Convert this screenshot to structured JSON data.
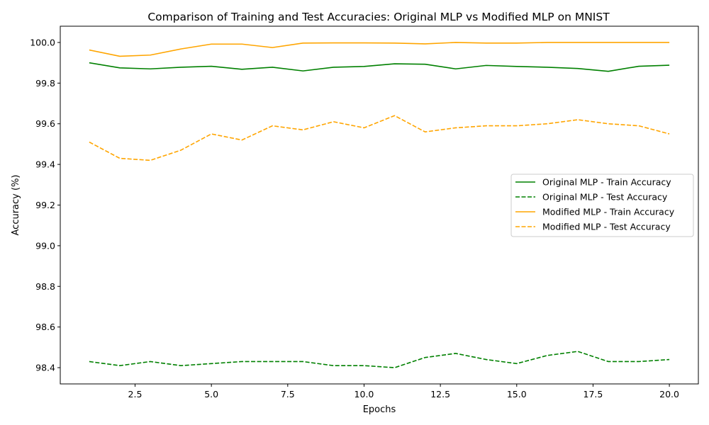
{
  "chart_data": {
    "type": "line",
    "title": "Comparison of Training and Test Accuracies: Original MLP vs Modified MLP on MNIST",
    "xlabel": "Epochs",
    "ylabel": "Accuracy (%)",
    "xlim": [
      0.05,
      20.95
    ],
    "ylim": [
      98.32,
      100.08
    ],
    "xticks": [
      2.5,
      5.0,
      7.5,
      10.0,
      12.5,
      15.0,
      17.5,
      20.0
    ],
    "xtick_labels": [
      "2.5",
      "5.0",
      "7.5",
      "10.0",
      "12.5",
      "15.0",
      "17.5",
      "20.0"
    ],
    "yticks": [
      98.4,
      98.6,
      98.8,
      99.0,
      99.2,
      99.4,
      99.6,
      99.8,
      100.0
    ],
    "ytick_labels": [
      "98.4",
      "98.6",
      "98.8",
      "99.0",
      "99.2",
      "99.4",
      "99.6",
      "99.8",
      "100.0"
    ],
    "grid": false,
    "legend_position": "center-right",
    "x": [
      1,
      2,
      3,
      4,
      5,
      6,
      7,
      8,
      9,
      10,
      11,
      12,
      13,
      14,
      15,
      16,
      17,
      18,
      19,
      20
    ],
    "series": [
      {
        "name": "Original MLP - Train Accuracy",
        "color": "#008000",
        "dash": "solid",
        "values": [
          99.9,
          99.875,
          99.87,
          99.878,
          99.883,
          99.868,
          99.878,
          99.86,
          99.878,
          99.882,
          99.895,
          99.893,
          99.87,
          99.887,
          99.882,
          99.878,
          99.872,
          99.858,
          99.883,
          99.888
        ]
      },
      {
        "name": "Original MLP - Test Accuracy",
        "color": "#008000",
        "dash": "dashed",
        "values": [
          98.43,
          98.41,
          98.43,
          98.41,
          98.42,
          98.43,
          98.43,
          98.43,
          98.41,
          98.41,
          98.4,
          98.45,
          98.47,
          98.44,
          98.42,
          98.46,
          98.48,
          98.43,
          98.43,
          98.44
        ]
      },
      {
        "name": "Modified MLP - Train Accuracy",
        "color": "#FFA500",
        "dash": "solid",
        "values": [
          99.963,
          99.932,
          99.938,
          99.968,
          99.992,
          99.992,
          99.975,
          99.997,
          99.998,
          99.998,
          99.997,
          99.993,
          100.0,
          99.997,
          99.997,
          100.0,
          100.0,
          100.0,
          100.0,
          100.0
        ]
      },
      {
        "name": "Modified MLP - Test Accuracy",
        "color": "#FFA500",
        "dash": "dashed",
        "values": [
          99.51,
          99.43,
          99.42,
          99.47,
          99.55,
          99.52,
          99.59,
          99.57,
          99.61,
          99.58,
          99.64,
          99.56,
          99.58,
          99.59,
          99.59,
          99.6,
          99.62,
          99.6,
          99.59,
          99.55
        ]
      }
    ]
  }
}
